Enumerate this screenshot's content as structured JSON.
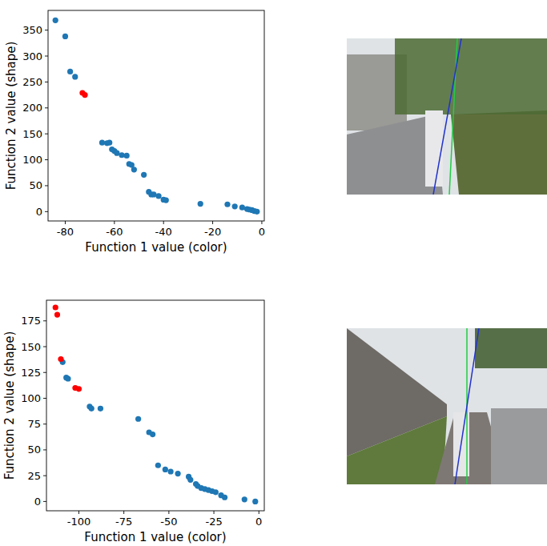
{
  "chart_data": [
    {
      "type": "scatter",
      "x_label": "Function 1 value (color)",
      "y_label": "Function 2 value (shape)",
      "xlim": [
        -87,
        1
      ],
      "ylim": [
        -18,
        388
      ],
      "xticks": [
        -80,
        -60,
        -40,
        -20,
        0
      ],
      "yticks": [
        0,
        50,
        100,
        150,
        200,
        250,
        300,
        350
      ],
      "series": [
        {
          "color": "#1f77b4",
          "marker": "circle",
          "x": [
            -84,
            -80,
            -78,
            -76,
            -65,
            -63,
            -62,
            -61,
            -60,
            -59,
            -57,
            -55,
            -54,
            -53,
            -52,
            -48,
            -46,
            -45,
            -44,
            -42,
            -40,
            -39,
            -25,
            -14,
            -11,
            -8,
            -6,
            -5,
            -4,
            -3,
            -2
          ],
          "values": [
            369,
            338,
            270,
            260,
            133,
            132,
            133,
            120,
            117,
            113,
            109,
            108,
            92,
            90,
            81,
            71,
            38,
            33,
            33,
            30,
            23,
            22,
            15,
            14,
            10,
            8,
            5,
            4,
            3,
            1,
            0
          ]
        },
        {
          "color": "#ff0000",
          "marker": "circle",
          "x": [
            -73,
            -72
          ],
          "values": [
            229,
            225
          ]
        }
      ]
    },
    {
      "type": "scatter",
      "x_label": "Function 1 value (color)",
      "y_label": "Function 2 value (shape)",
      "xlim": [
        -118,
        3
      ],
      "ylim": [
        -9,
        195
      ],
      "xticks": [
        -100,
        -75,
        -50,
        -25,
        0
      ],
      "yticks": [
        0,
        25,
        50,
        75,
        100,
        125,
        150,
        175
      ],
      "series": [
        {
          "color": "#1f77b4",
          "marker": "circle",
          "x": [
            -109,
            -107,
            -106,
            -94,
            -93,
            -88,
            -67,
            -61,
            -59,
            -56,
            -52,
            -49,
            -45,
            -39,
            -38,
            -35,
            -34,
            -32,
            -30,
            -28,
            -26,
            -24,
            -21,
            -19,
            -8,
            -2
          ],
          "values": [
            135,
            120,
            119,
            92,
            90,
            90,
            80,
            67,
            65,
            35,
            31,
            29,
            27,
            24,
            21,
            17,
            15,
            13,
            12,
            11,
            10,
            9,
            6,
            4,
            2,
            0
          ]
        },
        {
          "color": "#ff0000",
          "marker": "circle",
          "x": [
            -113,
            -112,
            -110,
            -102,
            -100
          ],
          "values": [
            188,
            181,
            138,
            110,
            109
          ]
        }
      ]
    }
  ]
}
